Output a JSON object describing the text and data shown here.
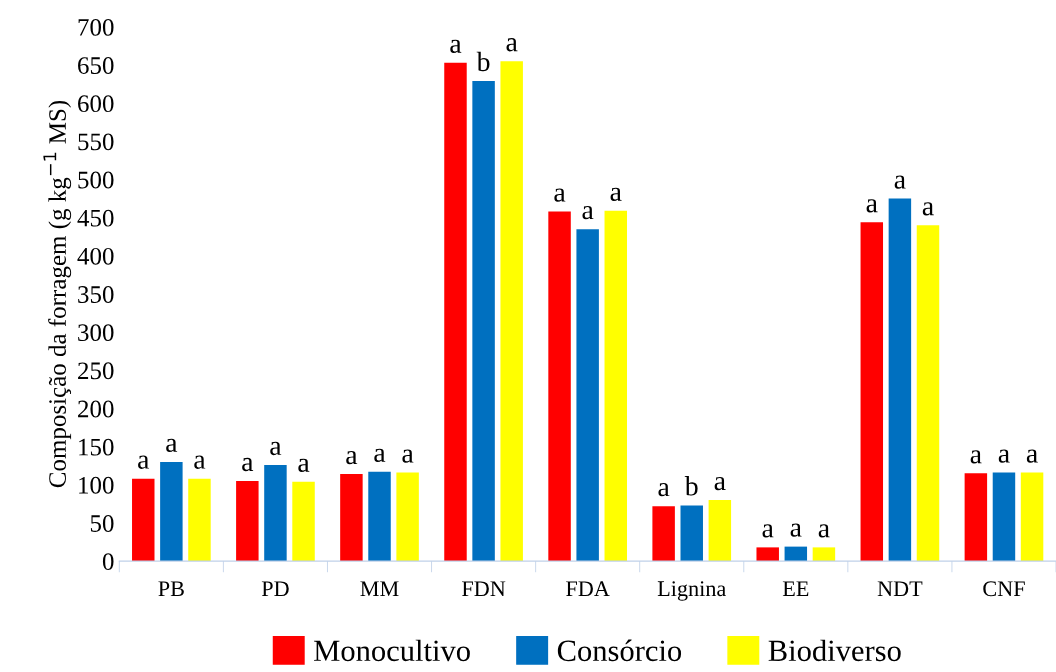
{
  "chart_data": {
    "type": "bar",
    "ylabel": "Composição da forragem (g kg$^{−1}$ MS)",
    "categories": [
      "PB",
      "PD",
      "MM",
      "FDN",
      "FDA",
      "Lignina",
      "EE",
      "NDT",
      "CNF"
    ],
    "series": [
      {
        "name": "Monocultivo",
        "color": "#ff0000",
        "values": [
          108,
          105,
          114,
          653,
          458,
          72,
          18,
          444,
          115
        ],
        "value_labels": [
          "a",
          "a",
          "a",
          "a",
          "a",
          "a",
          "a",
          "a",
          "a"
        ]
      },
      {
        "name": "Consórcio",
        "color": "#0070c0",
        "values": [
          130,
          126,
          117,
          629,
          435,
          73,
          19,
          475,
          116
        ],
        "value_labels": [
          "a",
          "a",
          "a",
          "b",
          "a",
          "b",
          "a",
          "a",
          "a"
        ]
      },
      {
        "name": "Biodiverso",
        "color": "#ffff00",
        "values": [
          108,
          104,
          116,
          655,
          459,
          80,
          18,
          440,
          116
        ],
        "value_labels": [
          "a",
          "a",
          "a",
          "a",
          "a",
          "a",
          "a",
          "a",
          "a"
        ]
      }
    ],
    "ylim": [
      0,
      700
    ],
    "yticks": [
      0,
      50,
      100,
      150,
      200,
      250,
      300,
      350,
      400,
      450,
      500,
      550,
      600,
      650,
      700
    ],
    "grid": false,
    "legend": "bottom"
  }
}
